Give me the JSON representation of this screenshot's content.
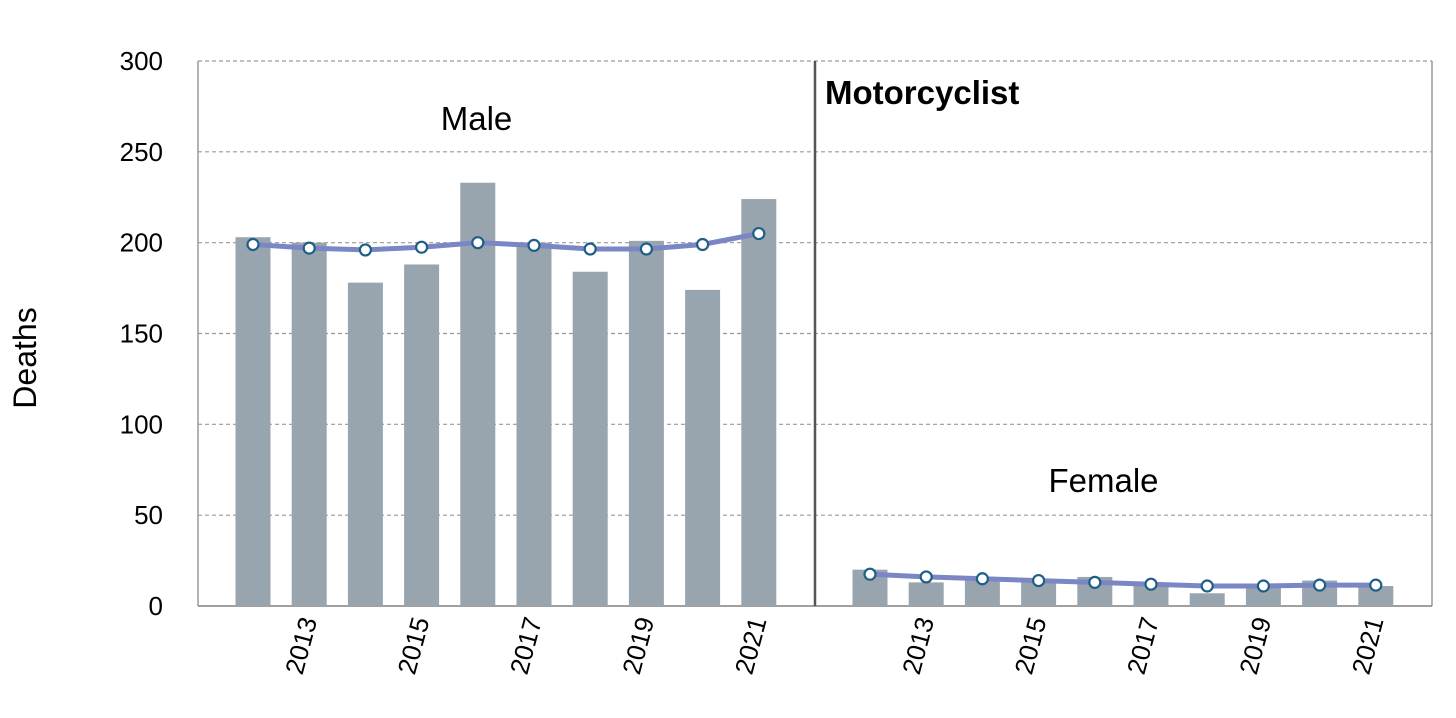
{
  "colors": {
    "bar": "#99a5ae",
    "trend_line": "#7a87c4",
    "marker_fill": "#ffffff",
    "marker_stroke": "#1f5f86",
    "grid": "#9a9a9a",
    "frame": "#9a9a9a",
    "divider": "#555555"
  },
  "chart_data": {
    "type": "bar",
    "title": "Motorcyclist",
    "ylabel": "Deaths",
    "ylim": [
      0,
      300
    ],
    "yticks": [
      0,
      50,
      100,
      150,
      200,
      250,
      300
    ],
    "x": [
      2012,
      2013,
      2014,
      2015,
      2016,
      2017,
      2018,
      2019,
      2020,
      2021
    ],
    "xtick_labels": [
      "2013",
      "2015",
      "2017",
      "2019",
      "2021"
    ],
    "grid": "horizontal dashed",
    "panels": [
      {
        "label": "Male",
        "bars": [
          203,
          200,
          178,
          188,
          233,
          200,
          184,
          201,
          174,
          224
        ],
        "trend": [
          199,
          197,
          196,
          197.5,
          200,
          198.5,
          196.5,
          196.5,
          199,
          205
        ]
      },
      {
        "label": "Female",
        "bars": [
          20,
          13,
          15,
          14,
          16,
          12,
          7,
          11,
          14,
          11
        ],
        "trend": [
          17.5,
          16,
          15,
          14,
          13,
          12,
          11,
          11,
          11.5,
          11.5
        ]
      }
    ]
  }
}
